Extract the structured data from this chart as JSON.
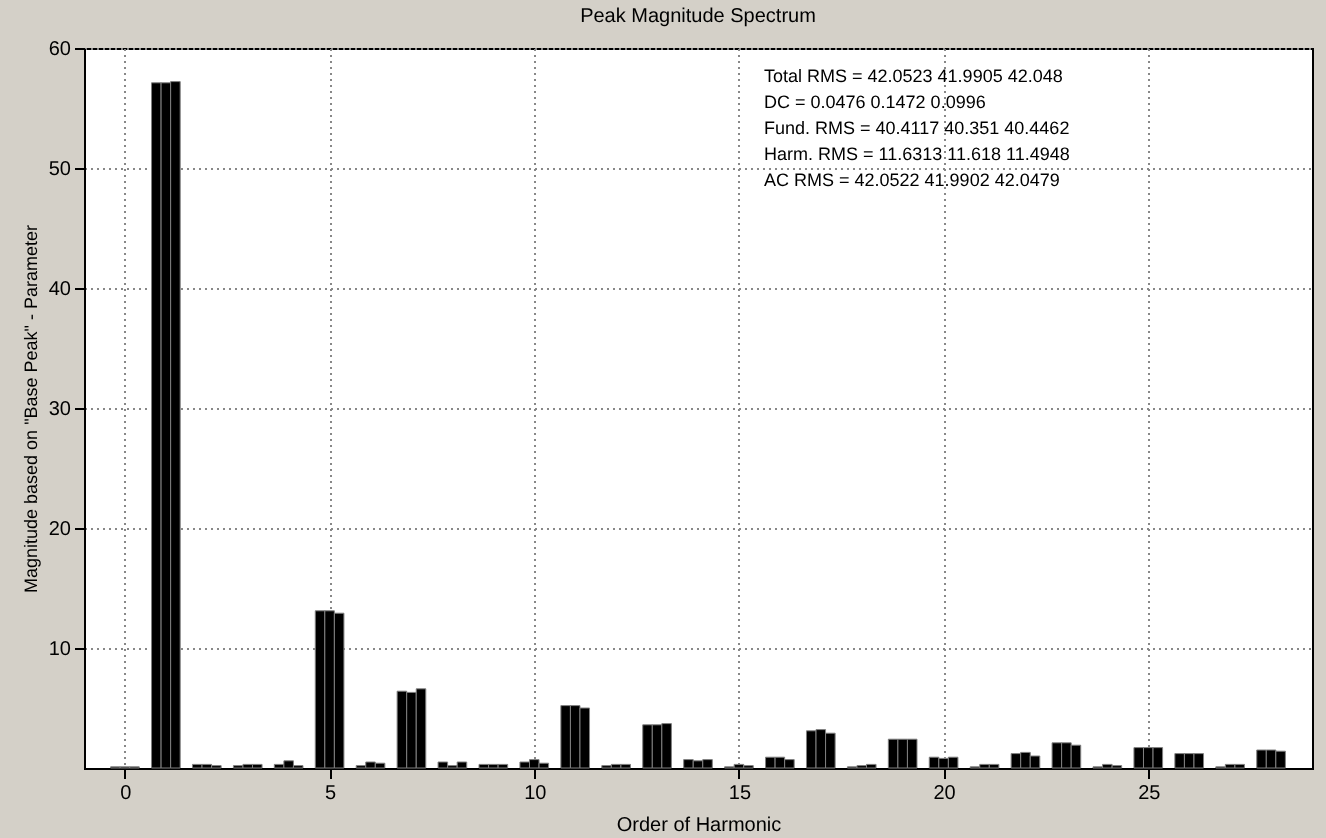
{
  "chart_data": {
    "type": "bar",
    "title": "Peak Magnitude Spectrum",
    "xlabel": "Order of Harmonic",
    "ylabel": "Magnitude based on \"Base Peak\" - Parameter",
    "x": [
      0,
      1,
      2,
      3,
      4,
      5,
      6,
      7,
      8,
      9,
      10,
      11,
      12,
      13,
      14,
      15,
      16,
      17,
      18,
      19,
      20,
      21,
      22,
      23,
      24,
      25,
      26,
      27,
      28
    ],
    "series": [
      {
        "color": "#000000",
        "values": [
          0.1,
          57.1,
          0.3,
          0.2,
          0.3,
          13.1,
          0.2,
          6.4,
          0.5,
          0.3,
          0.5,
          5.2,
          0.2,
          3.6,
          0.7,
          0.1,
          0.9,
          3.1,
          0.1,
          2.4,
          0.9,
          0.1,
          1.2,
          2.1,
          0.1,
          1.7,
          1.2,
          0.1,
          1.5
        ]
      },
      {
        "color": "#000000",
        "values": [
          0.1,
          57.1,
          0.3,
          0.3,
          0.6,
          13.1,
          0.5,
          6.3,
          0.2,
          0.3,
          0.7,
          5.2,
          0.3,
          3.6,
          0.6,
          0.3,
          0.9,
          3.2,
          0.2,
          2.4,
          0.8,
          0.3,
          1.3,
          2.1,
          0.3,
          1.7,
          1.2,
          0.3,
          1.5
        ]
      },
      {
        "color": "#000000",
        "values": [
          0.1,
          57.2,
          0.2,
          0.3,
          0.2,
          12.9,
          0.4,
          6.6,
          0.5,
          0.3,
          0.4,
          5.0,
          0.3,
          3.7,
          0.7,
          0.2,
          0.7,
          2.9,
          0.3,
          2.4,
          0.9,
          0.3,
          1.0,
          1.9,
          0.2,
          1.7,
          1.2,
          0.3,
          1.4
        ]
      }
    ],
    "xlim": [
      -1,
      29
    ],
    "xticks": [
      0,
      5,
      10,
      15,
      20,
      25
    ],
    "ylim": [
      0,
      60
    ],
    "yticks": [
      10,
      20,
      30,
      40,
      50,
      60
    ],
    "grid": true,
    "legend": false,
    "annotations": [
      "Total RMS = 42.0523   41.9905   42.048",
      "DC = 0.0476   0.1472   0.0996",
      "Fund. RMS = 40.4117   40.351   40.4462",
      "Harm. RMS = 11.6313   11.618   11.4948",
      "AC RMS = 42.0522   41.9902   42.0479"
    ]
  }
}
